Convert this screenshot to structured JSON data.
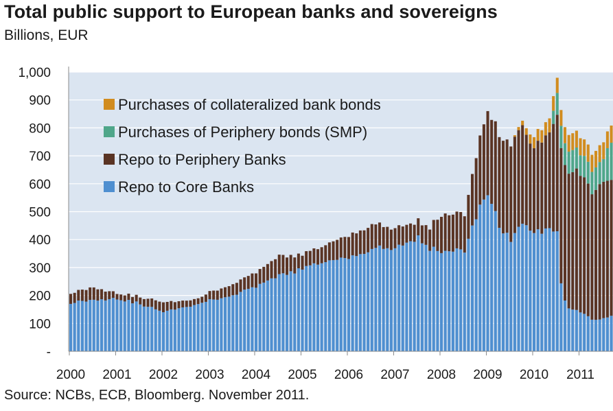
{
  "title": "Total public support to European banks and sovereigns",
  "subtitle": "Billions, EUR",
  "source": "Source: NCBs, ECB, Bloomberg. November 2011.",
  "colors": {
    "plot_bg": "#dbe5f1",
    "grid": "#ffffff",
    "core": "#4f8fd0",
    "periphery": "#5a3424",
    "smp": "#4fa68a",
    "covered": "#d18c1f"
  },
  "chart_data": {
    "type": "bar",
    "stacked": true,
    "ylim": [
      0,
      1000
    ],
    "y_ticks": [
      0,
      100,
      200,
      300,
      400,
      500,
      600,
      700,
      800,
      900,
      1000
    ],
    "y_tick_labels": [
      "-",
      "100",
      "200",
      "300",
      "400",
      "500",
      "600",
      "700",
      "800",
      "900",
      "1,000"
    ],
    "x_tick_labels": [
      "2000",
      "2001",
      "2002",
      "2003",
      "2004",
      "2005",
      "2006",
      "2007",
      "2008",
      "2009",
      "2010",
      "2011"
    ],
    "x_start_year": 2000,
    "x_end_year": 2011.8,
    "bars_per_year": 12,
    "legend": [
      {
        "name": "Purchases of collateralized bank bonds",
        "color": "#d18c1f"
      },
      {
        "name": "Purchases of Periphery bonds (SMP)",
        "color": "#4fa68a"
      },
      {
        "name": "Repo to Periphery Banks",
        "color": "#5a3424"
      },
      {
        "name": "Repo to Core Banks",
        "color": "#4f8fd0"
      }
    ],
    "series": [
      {
        "name": "Repo to Core Banks",
        "color": "#4f8fd0",
        "anchors": [
          [
            2000.0,
            175
          ],
          [
            2000.5,
            185
          ],
          [
            2001.0,
            190
          ],
          [
            2001.5,
            170
          ],
          [
            2002.0,
            140
          ],
          [
            2002.3,
            155
          ],
          [
            2002.8,
            170
          ],
          [
            2003.0,
            185
          ],
          [
            2003.5,
            200
          ],
          [
            2004.0,
            230
          ],
          [
            2004.5,
            270
          ],
          [
            2005.0,
            295
          ],
          [
            2005.5,
            320
          ],
          [
            2006.0,
            335
          ],
          [
            2006.5,
            370
          ],
          [
            2007.0,
            365
          ],
          [
            2007.5,
            410
          ],
          [
            2007.75,
            370
          ],
          [
            2008.0,
            360
          ],
          [
            2008.5,
            360
          ],
          [
            2008.8,
            510
          ],
          [
            2009.0,
            570
          ],
          [
            2009.3,
            430
          ],
          [
            2009.5,
            400
          ],
          [
            2009.7,
            460
          ],
          [
            2010.0,
            420
          ],
          [
            2010.3,
            440
          ],
          [
            2010.5,
            440
          ],
          [
            2010.55,
            270
          ],
          [
            2010.7,
            160
          ],
          [
            2011.0,
            140
          ],
          [
            2011.3,
            110
          ],
          [
            2011.5,
            120
          ],
          [
            2011.8,
            130
          ]
        ]
      },
      {
        "name": "Repo to Periphery Banks",
        "color": "#5a3424",
        "anchors": [
          [
            2000.0,
            35
          ],
          [
            2000.5,
            45
          ],
          [
            2001.0,
            20
          ],
          [
            2001.5,
            25
          ],
          [
            2002.0,
            35
          ],
          [
            2002.3,
            25
          ],
          [
            2002.8,
            20
          ],
          [
            2003.0,
            30
          ],
          [
            2003.5,
            40
          ],
          [
            2004.0,
            50
          ],
          [
            2004.5,
            70
          ],
          [
            2005.0,
            50
          ],
          [
            2005.5,
            60
          ],
          [
            2006.0,
            80
          ],
          [
            2006.5,
            90
          ],
          [
            2007.0,
            70
          ],
          [
            2007.5,
            60
          ],
          [
            2007.75,
            75
          ],
          [
            2008.0,
            130
          ],
          [
            2008.5,
            130
          ],
          [
            2008.8,
            230
          ],
          [
            2009.0,
            300
          ],
          [
            2009.3,
            330
          ],
          [
            2009.5,
            340
          ],
          [
            2009.7,
            350
          ],
          [
            2010.0,
            310
          ],
          [
            2010.3,
            340
          ],
          [
            2010.5,
            420
          ],
          [
            2010.55,
            480
          ],
          [
            2010.7,
            480
          ],
          [
            2011.0,
            500
          ],
          [
            2011.3,
            450
          ],
          [
            2011.5,
            500
          ],
          [
            2011.8,
            470
          ]
        ]
      },
      {
        "name": "Purchases of Periphery bonds (SMP)",
        "color": "#4fa68a",
        "anchors": [
          [
            2010.0,
            0
          ],
          [
            2010.35,
            0
          ],
          [
            2010.4,
            40
          ],
          [
            2010.5,
            80
          ],
          [
            2010.7,
            80
          ],
          [
            2011.0,
            75
          ],
          [
            2011.3,
            80
          ],
          [
            2011.5,
            80
          ],
          [
            2011.6,
            120
          ],
          [
            2011.8,
            150
          ]
        ]
      },
      {
        "name": "Purchases of collateralized bank bonds",
        "color": "#d18c1f",
        "anchors": [
          [
            2009.5,
            0
          ],
          [
            2009.55,
            3
          ],
          [
            2009.8,
            20
          ],
          [
            2010.0,
            40
          ],
          [
            2010.5,
            55
          ],
          [
            2010.7,
            60
          ],
          [
            2011.0,
            60
          ],
          [
            2011.8,
            60
          ]
        ]
      }
    ]
  }
}
